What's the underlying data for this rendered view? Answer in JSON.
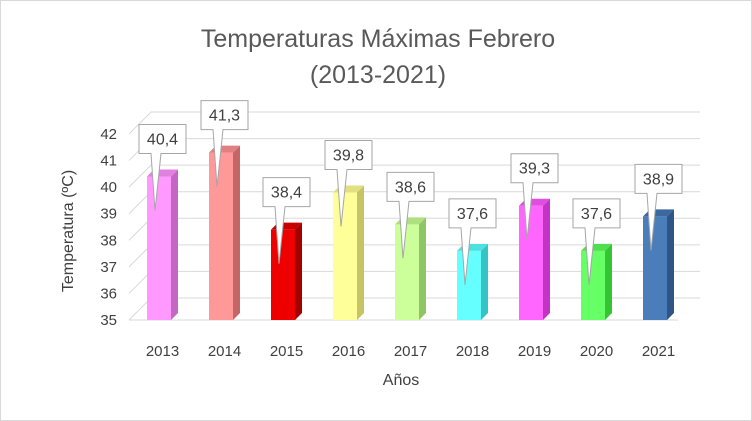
{
  "chart_data": {
    "type": "bar",
    "title": "Temperaturas  Máximas Febrero",
    "subtitle": "(2013-2021)",
    "xlabel": "Años",
    "ylabel": "Temperatura (ºC)",
    "ylim": [
      35,
      42
    ],
    "yticks": [
      "35",
      "36",
      "37",
      "38",
      "39",
      "40",
      "41",
      "42"
    ],
    "grid": true,
    "categories": [
      "2013",
      "2014",
      "2015",
      "2016",
      "2017",
      "2018",
      "2019",
      "2020",
      "2021"
    ],
    "values": [
      40.4,
      41.3,
      38.4,
      39.8,
      38.6,
      37.6,
      39.3,
      37.6,
      38.9
    ],
    "data_labels": [
      "40,4",
      "41,3",
      "38,4",
      "39,8",
      "38,6",
      "37,6",
      "39,3",
      "37,6",
      "38,9"
    ],
    "colors": [
      {
        "front": "#ff99ff",
        "side": "#c566c5",
        "top": "#e080e0"
      },
      {
        "front": "#ff9999",
        "side": "#c56666",
        "top": "#e08080"
      },
      {
        "front": "#ee0000",
        "side": "#a30000",
        "top": "#c80000"
      },
      {
        "front": "#ffff99",
        "side": "#c5c566",
        "top": "#e0e080"
      },
      {
        "front": "#ccff99",
        "side": "#90c566",
        "top": "#aee080"
      },
      {
        "front": "#66ffff",
        "side": "#33c5c5",
        "top": "#4ee0e0"
      },
      {
        "front": "#ff66ff",
        "side": "#c533c5",
        "top": "#e04ee0"
      },
      {
        "front": "#66ff66",
        "side": "#33c533",
        "top": "#4ee04e"
      },
      {
        "front": "#4a7ebb",
        "side": "#2e5585",
        "top": "#3c68a0"
      }
    ]
  }
}
